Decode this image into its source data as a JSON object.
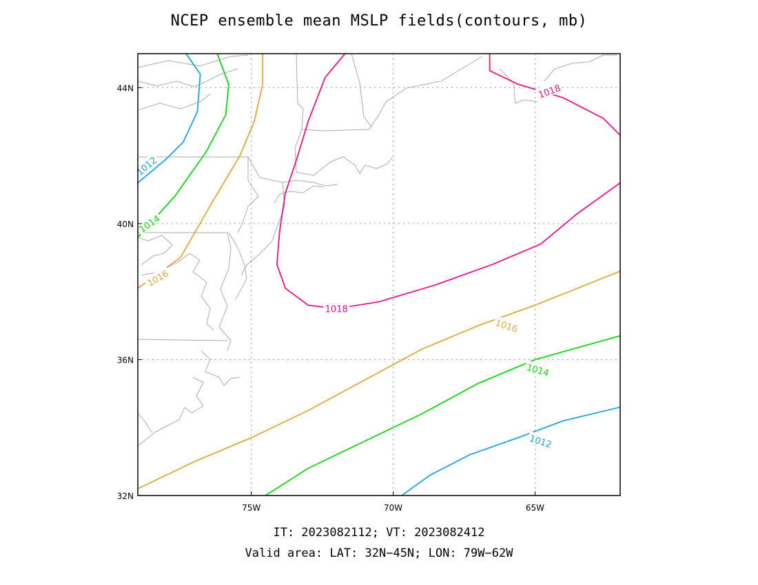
{
  "title": "NCEP ensemble mean MSLP fields(contours, mb)",
  "footer": {
    "line1": "IT: 2023082112; VT: 2023082412",
    "line2": "Valid area: LAT: 32N−45N; LON: 79W−62W"
  },
  "chart_data": {
    "type": "contour-map",
    "xlim": [
      -79,
      -62
    ],
    "ylim": [
      32,
      45
    ],
    "grid": true,
    "x_ticks": [
      {
        "value": -75,
        "label": "75W"
      },
      {
        "value": -70,
        "label": "70W"
      },
      {
        "value": -65,
        "label": "65W"
      }
    ],
    "y_ticks": [
      {
        "value": 32,
        "label": "32N"
      },
      {
        "value": 36,
        "label": "36N"
      },
      {
        "value": 40,
        "label": "40N"
      },
      {
        "value": 44,
        "label": "44N"
      }
    ],
    "colors": {
      "1012": "#1e9fe8",
      "1014": "#14d214",
      "1016": "#e0a83a",
      "1018": "#e8128c",
      "coast": "#aaaaaa"
    },
    "contours": [
      {
        "level": 1012,
        "label": "1012",
        "lines": [
          [
            [
              -77.3,
              45.0
            ],
            [
              -76.8,
              44.4
            ],
            [
              -76.9,
              43.3
            ],
            [
              -77.4,
              42.4
            ],
            [
              -78.0,
              41.9
            ],
            [
              -79.0,
              41.2
            ]
          ],
          [
            [
              -69.7,
              32.0
            ],
            [
              -68.7,
              32.6
            ],
            [
              -67.3,
              33.2
            ],
            [
              -65.6,
              33.7
            ],
            [
              -64.0,
              34.2
            ],
            [
              -62.0,
              34.6
            ]
          ]
        ],
        "labels": [
          [
            -78.7,
            41.7,
            -40
          ],
          [
            -64.8,
            33.6,
            18
          ]
        ]
      },
      {
        "level": 1014,
        "label": "1014",
        "lines": [
          [
            [
              -76.2,
              45.0
            ],
            [
              -75.8,
              44.1
            ],
            [
              -75.9,
              43.2
            ],
            [
              -76.6,
              42.1
            ],
            [
              -77.7,
              40.8
            ],
            [
              -79.0,
              39.6
            ]
          ],
          [
            [
              -74.5,
              32.0
            ],
            [
              -73.0,
              32.8
            ],
            [
              -71.0,
              33.6
            ],
            [
              -69.0,
              34.4
            ],
            [
              -67.0,
              35.3
            ],
            [
              -65.0,
              36.0
            ],
            [
              -62.0,
              36.7
            ]
          ]
        ],
        "labels": [
          [
            -78.6,
            40.0,
            -35
          ],
          [
            -64.9,
            35.7,
            16
          ]
        ]
      },
      {
        "level": 1016,
        "label": "1016",
        "lines": [
          [
            [
              -74.6,
              45.0
            ],
            [
              -74.6,
              44.1
            ],
            [
              -74.9,
              43.0
            ],
            [
              -75.4,
              42.0
            ],
            [
              -76.4,
              40.6
            ],
            [
              -77.5,
              39.0
            ],
            [
              -79.0,
              38.1
            ]
          ],
          [
            [
              -79.0,
              32.2
            ],
            [
              -77.0,
              33.0
            ],
            [
              -75.0,
              33.7
            ],
            [
              -73.0,
              34.5
            ],
            [
              -71.0,
              35.4
            ],
            [
              -69.0,
              36.3
            ],
            [
              -67.0,
              37.0
            ],
            [
              -65.0,
              37.6
            ],
            [
              -62.0,
              38.6
            ]
          ]
        ],
        "labels": [
          [
            -78.3,
            38.4,
            -30
          ],
          [
            -66.0,
            37.0,
            18
          ]
        ]
      },
      {
        "level": 1018,
        "label": "1018",
        "lines": [
          [
            [
              -71.7,
              45.0
            ],
            [
              -72.4,
              44.3
            ],
            [
              -73.0,
              43.0
            ],
            [
              -73.4,
              41.9
            ],
            [
              -73.8,
              40.9
            ],
            [
              -74.0,
              39.8
            ],
            [
              -74.1,
              38.8
            ],
            [
              -73.8,
              38.1
            ],
            [
              -73.0,
              37.6
            ],
            [
              -72.0,
              37.5
            ],
            [
              -70.5,
              37.7
            ],
            [
              -68.5,
              38.2
            ],
            [
              -66.5,
              38.8
            ],
            [
              -64.8,
              39.4
            ],
            [
              -63.5,
              40.3
            ],
            [
              -62.5,
              40.9
            ],
            [
              -62.0,
              41.2
            ]
          ],
          [
            [
              -66.6,
              45.0
            ],
            [
              -66.6,
              44.5
            ],
            [
              -65.6,
              44.1
            ],
            [
              -64.0,
              43.7
            ],
            [
              -62.6,
              43.1
            ],
            [
              -62.0,
              42.6
            ]
          ]
        ],
        "labels": [
          [
            -72.0,
            37.5,
            0
          ],
          [
            -64.5,
            43.9,
            -20
          ]
        ]
      }
    ]
  }
}
